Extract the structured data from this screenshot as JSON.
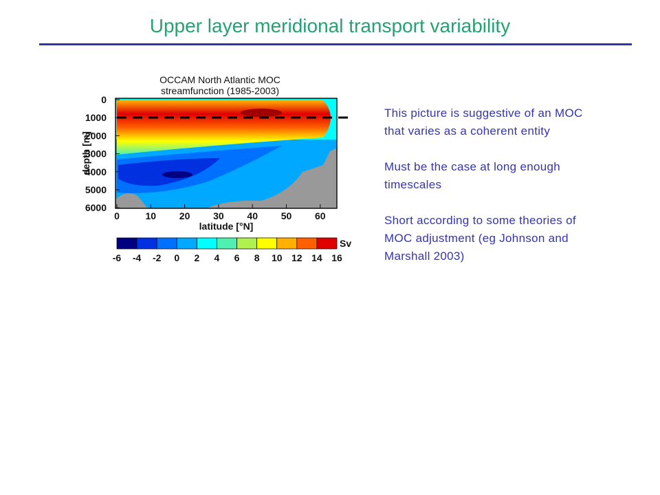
{
  "title": "Upper layer meridional transport variability",
  "figure": {
    "caption_lines": [
      "OCCAM North Atlantic MOC",
      "streamfunction (1985-2003)"
    ],
    "y_label": "depth [m]",
    "x_label": "latitude [°N]",
    "y_tick_labels": [
      "0",
      "1000",
      "2000",
      "3000",
      "4000",
      "5000",
      "6000"
    ],
    "x_tick_labels": [
      "0",
      "10",
      "20",
      "30",
      "40",
      "50",
      "60"
    ],
    "colorbar_labels": [
      "-6",
      "-4",
      "-2",
      "0",
      "2",
      "4",
      "6",
      "8",
      "10",
      "12",
      "14",
      "16"
    ],
    "colorbar_unit": "Sv"
  },
  "bullets": [
    "This picture is suggestive of an MOC that varies as a coherent entity",
    "Must be the case at long enough timescales",
    "Short according to some theories of MOC adjustment (eg Johnson and Marshall 2003)"
  ]
}
